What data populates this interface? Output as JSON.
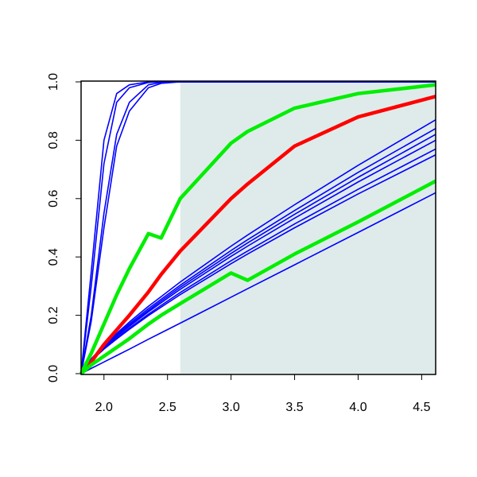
{
  "chart_data": {
    "type": "line",
    "x": [
      1.82,
      1.9,
      2.0,
      2.1,
      2.2,
      2.35,
      2.45,
      2.6,
      3.0,
      3.13,
      3.5,
      4.0,
      4.61
    ],
    "xlim": [
      1.82,
      4.61
    ],
    "ylim": [
      0,
      1
    ],
    "xticks": [
      {
        "value": 2,
        "label": "2.0"
      },
      2.5,
      {
        "value": 3,
        "label": "3.0"
      },
      3.5,
      {
        "value": 4,
        "label": "4.0"
      },
      4.5
    ],
    "yticks": [
      {
        "value": 0,
        "label": "0.0"
      },
      0.2,
      0.4,
      0.6,
      0.8,
      {
        "value": 1,
        "label": "1.0"
      }
    ],
    "shaded_region": {
      "x": [
        2.6,
        4.61
      ],
      "color": "#dfebeb"
    },
    "series": [
      {
        "color": "#0000ff",
        "values": [
          0,
          0.35,
          0.8,
          0.96,
          0.99,
          1,
          1,
          1,
          1,
          1,
          1,
          1,
          1
        ]
      },
      {
        "color": "#0000ff",
        "values": [
          0,
          0.3,
          0.72,
          0.93,
          0.98,
          0.998,
          1,
          1,
          1,
          1,
          1,
          1,
          1
        ]
      },
      {
        "color": "#0000ff",
        "values": [
          0,
          0.2,
          0.55,
          0.82,
          0.93,
          0.99,
          0.998,
          1,
          1,
          1,
          1,
          1,
          1
        ]
      },
      {
        "color": "#0000ff",
        "values": [
          0,
          0.18,
          0.5,
          0.78,
          0.9,
          0.98,
          0.995,
          1,
          1,
          1,
          1,
          1,
          1
        ]
      },
      {
        "color": "#0000ff",
        "values": [
          0,
          0.051,
          0.097,
          0.138,
          0.177,
          0.231,
          0.264,
          0.314,
          0.437,
          0.475,
          0.579,
          0.714,
          0.87
        ]
      },
      {
        "color": "#0000ff",
        "values": [
          0,
          0.05,
          0.094,
          0.134,
          0.171,
          0.223,
          0.255,
          0.303,
          0.422,
          0.459,
          0.559,
          0.69,
          0.84
        ]
      },
      {
        "color": "#0000ff",
        "values": [
          0,
          0.048,
          0.092,
          0.13,
          0.166,
          0.217,
          0.249,
          0.296,
          0.412,
          0.448,
          0.546,
          0.673,
          0.82
        ]
      },
      {
        "color": "#0000ff",
        "values": [
          0,
          0.047,
          0.09,
          0.127,
          0.162,
          0.212,
          0.243,
          0.289,
          0.402,
          0.437,
          0.533,
          0.657,
          0.8
        ]
      },
      {
        "color": "#0000ff",
        "values": [
          0,
          0.045,
          0.086,
          0.122,
          0.156,
          0.204,
          0.234,
          0.278,
          0.387,
          0.42,
          0.513,
          0.632,
          0.77
        ]
      },
      {
        "color": "#0000ff",
        "values": [
          0,
          0.044,
          0.084,
          0.119,
          0.152,
          0.199,
          0.228,
          0.271,
          0.377,
          0.41,
          0.5,
          0.616,
          0.75
        ]
      },
      {
        "color": "#0000ff",
        "values": [
          0,
          0.018,
          0.04,
          0.062,
          0.084,
          0.118,
          0.14,
          0.173,
          0.262,
          0.291,
          0.373,
          0.484,
          0.62
        ]
      },
      {
        "color": "#ff0000",
        "values": [
          0,
          0.04,
          0.1,
          0.15,
          0.2,
          0.28,
          0.34,
          0.42,
          0.6,
          0.65,
          0.78,
          0.88,
          0.95
        ]
      },
      {
        "color": "#00ee00",
        "values": [
          0,
          0.07,
          0.17,
          0.27,
          0.36,
          0.48,
          0.465,
          0.6,
          0.79,
          0.83,
          0.91,
          0.96,
          0.99
        ]
      },
      {
        "color": "#00ee00",
        "values": [
          0,
          0.03,
          0.06,
          0.09,
          0.12,
          0.17,
          0.2,
          0.24,
          0.345,
          0.32,
          0.41,
          0.52,
          0.66
        ]
      }
    ]
  }
}
